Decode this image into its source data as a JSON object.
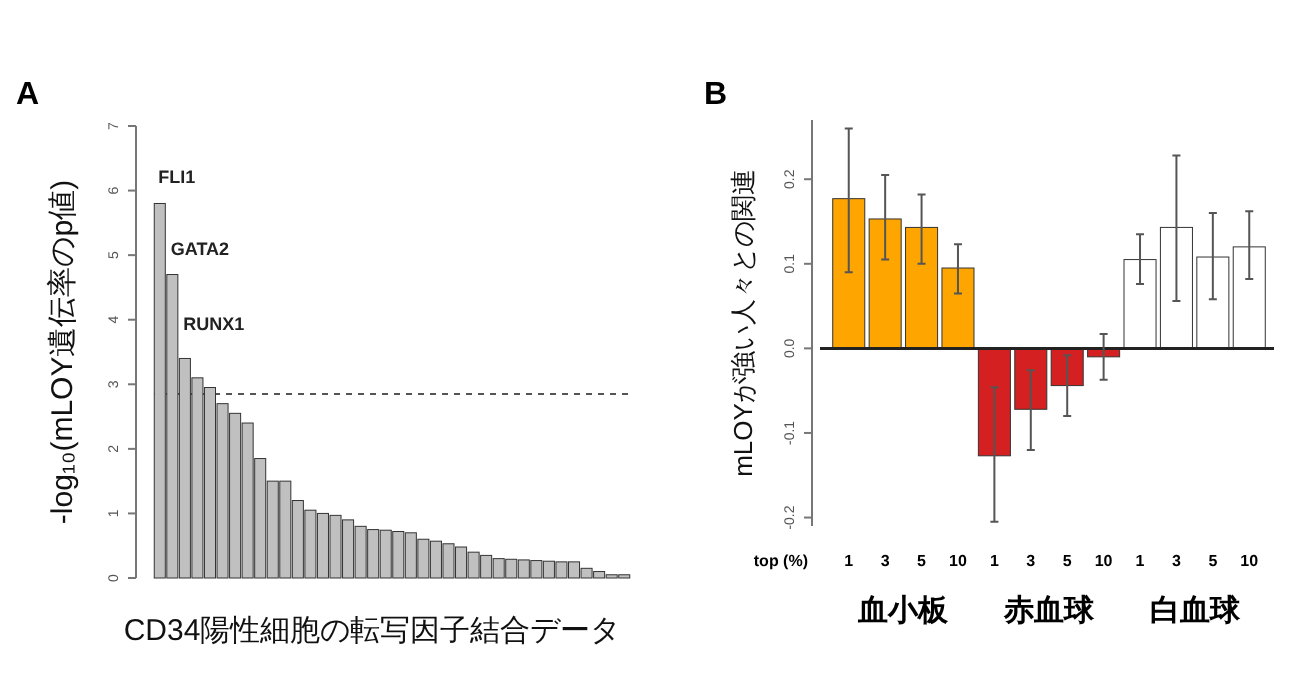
{
  "chart_data": [
    {
      "type": "bar",
      "title": "A",
      "ylabel": "-log₁₀(mLOY遺伝率のp値)",
      "xlabel": "CD34陽性細胞の転写因子結合データ",
      "annotations": [
        "FLI1",
        "GATA2",
        "RUNX1"
      ],
      "categories": [
        null,
        null,
        null,
        null,
        null,
        null,
        null,
        null,
        null,
        null,
        null,
        null,
        null,
        null,
        null,
        null,
        null,
        null,
        null,
        null,
        null,
        null,
        null,
        null,
        null,
        null,
        null,
        null,
        null,
        null,
        null,
        null,
        null,
        null,
        null,
        null,
        null,
        null
      ],
      "values": [
        5.8,
        4.7,
        3.4,
        3.1,
        2.95,
        2.7,
        2.55,
        2.4,
        1.85,
        1.5,
        1.5,
        1.2,
        1.05,
        1.0,
        0.97,
        0.9,
        0.8,
        0.75,
        0.74,
        0.72,
        0.7,
        0.6,
        0.57,
        0.53,
        0.48,
        0.4,
        0.35,
        0.3,
        0.29,
        0.28,
        0.27,
        0.26,
        0.25,
        0.25,
        0.15,
        0.1,
        0.05,
        0.05
      ],
      "color": "#c0c0c0",
      "ylim": [
        0,
        7
      ],
      "yticks": [
        0,
        1,
        2,
        3,
        4,
        5,
        6,
        7
      ],
      "ref_lines": [
        {
          "axis": "y",
          "value": 2.85,
          "line_style": "dashed",
          "color": "#555555"
        }
      ]
    },
    {
      "type": "bar",
      "title": "B",
      "ylabel": "mLOYが強い人々との関連",
      "xlabel": "top (%)",
      "categories": [
        "1",
        "3",
        "5",
        "10",
        "1",
        "3",
        "5",
        "10",
        "1",
        "3",
        "5",
        "10"
      ],
      "values": [
        0.177,
        0.153,
        0.143,
        0.095,
        -0.127,
        -0.072,
        -0.044,
        -0.01,
        0.105,
        0.143,
        0.108,
        0.12
      ],
      "colors": [
        "#ffa500",
        "#ffa500",
        "#ffa500",
        "#ffa500",
        "#d42020",
        "#d42020",
        "#d42020",
        "#d42020",
        "#ffffff",
        "#ffffff",
        "#ffffff",
        "#ffffff"
      ],
      "errors": [
        [
          0.09,
          0.26
        ],
        [
          0.105,
          0.205
        ],
        [
          0.1,
          0.182
        ],
        [
          0.065,
          0.123
        ],
        [
          -0.205,
          -0.046
        ],
        [
          -0.12,
          -0.026
        ],
        [
          -0.08,
          -0.008
        ],
        [
          -0.037,
          0.017
        ],
        [
          0.076,
          0.135
        ],
        [
          0.056,
          0.228
        ],
        [
          0.058,
          0.16
        ],
        [
          0.082,
          0.162
        ]
      ],
      "ylim": [
        -0.21,
        0.27
      ],
      "yticks": [
        {
          "value": -0.2,
          "label": "-0.2"
        },
        {
          "value": -0.1,
          "label": "-0.1"
        },
        {
          "value": 0,
          "label": "0.0"
        },
        {
          "value": 0.1,
          "label": "0.1"
        },
        {
          "value": 0.2,
          "label": "0.2"
        }
      ],
      "ref_lines": [
        {
          "axis": "y",
          "value": 0,
          "line_style": "solid",
          "color": "#222222"
        }
      ],
      "annotations": [
        "血小板",
        "赤血球",
        "白血球"
      ]
    }
  ]
}
